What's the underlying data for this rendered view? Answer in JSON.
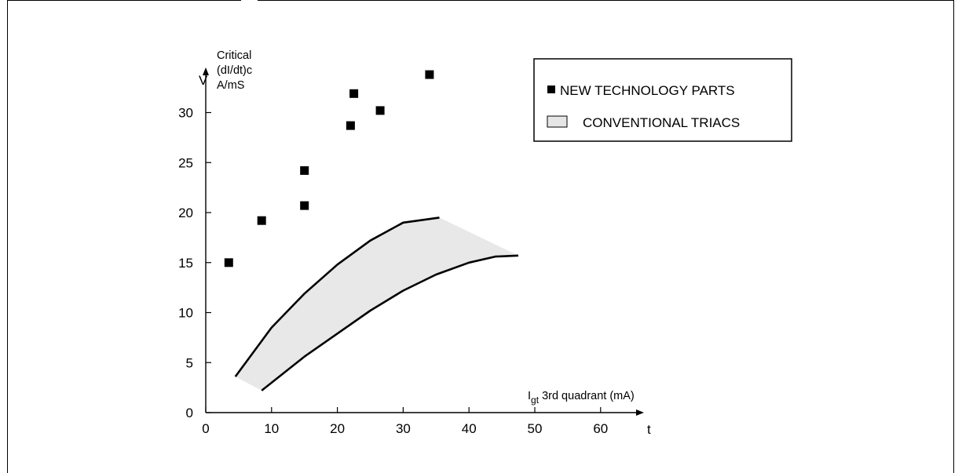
{
  "chart_data": {
    "type": "scatter",
    "title": "",
    "ylabel_lines": [
      "Critical",
      "(dI/dt)c",
      "A/mS"
    ],
    "y_axis_letter": "V",
    "x_axis_letter": "t",
    "xlabel_main": "I",
    "xlabel_sub": "gt",
    "xlabel_rest": " 3rd quadrant (mA)",
    "xlim": [
      0,
      65
    ],
    "ylim": [
      0,
      36
    ],
    "x_ticks": [
      0,
      10,
      20,
      30,
      40,
      50,
      60
    ],
    "y_ticks": [
      0,
      5,
      10,
      15,
      20,
      25,
      30
    ],
    "grid": false,
    "legend_position": "top-right",
    "series": [
      {
        "name": "NEW TECHNOLOGY PARTS",
        "marker": "square",
        "color": "#000000",
        "points": [
          {
            "x": 3.5,
            "y": 15.0
          },
          {
            "x": 8.5,
            "y": 19.2
          },
          {
            "x": 15.0,
            "y": 20.7
          },
          {
            "x": 15.0,
            "y": 24.2
          },
          {
            "x": 22.0,
            "y": 28.7
          },
          {
            "x": 22.5,
            "y": 31.9
          },
          {
            "x": 26.5,
            "y": 30.2
          },
          {
            "x": 34.0,
            "y": 33.8
          }
        ]
      },
      {
        "name": "CONVENTIONAL TRIACS",
        "marker": "band",
        "color": "#e8e8e8",
        "upper_edge": [
          {
            "x": 4.5,
            "y": 3.6
          },
          {
            "x": 10,
            "y": 8.5
          },
          {
            "x": 15,
            "y": 11.9
          },
          {
            "x": 20,
            "y": 14.8
          },
          {
            "x": 25,
            "y": 17.2
          },
          {
            "x": 30,
            "y": 19.0
          },
          {
            "x": 35.5,
            "y": 19.5
          }
        ],
        "lower_edge": [
          {
            "x": 8.5,
            "y": 2.2
          },
          {
            "x": 15,
            "y": 5.6
          },
          {
            "x": 20,
            "y": 7.9
          },
          {
            "x": 25,
            "y": 10.2
          },
          {
            "x": 30,
            "y": 12.2
          },
          {
            "x": 35,
            "y": 13.8
          },
          {
            "x": 40,
            "y": 15.0
          },
          {
            "x": 44,
            "y": 15.6
          },
          {
            "x": 47.5,
            "y": 15.7
          }
        ]
      }
    ]
  }
}
